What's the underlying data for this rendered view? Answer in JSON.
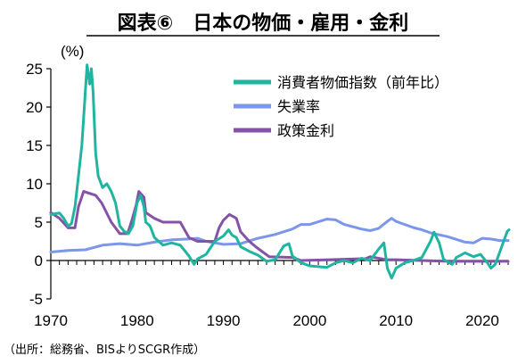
{
  "chart_data": {
    "type": "line",
    "title": "図表⑥　日本の物価・雇用・金利",
    "unit_label": "(%)",
    "source": "（出所：総務省、BISよりSCGR作成）",
    "xlim": [
      1970,
      2023
    ],
    "ylim": [
      -5,
      25
    ],
    "x_ticks": [
      "1970",
      "1980",
      "1990",
      "2000",
      "2010",
      "2020"
    ],
    "y_ticks": [
      "25",
      "20",
      "15",
      "10",
      "5",
      "0",
      "-5"
    ],
    "legend_position": "top-right",
    "series": [
      {
        "name": "消費者物価指数（前年比）",
        "color": "#1fb5a0",
        "points": [
          [
            1970,
            6.0
          ],
          [
            1971,
            6.2
          ],
          [
            1971.5,
            5.5
          ],
          [
            1972,
            4.5
          ],
          [
            1972.4,
            4.8
          ],
          [
            1972.8,
            7.0
          ],
          [
            1973.2,
            11.0
          ],
          [
            1973.6,
            15.0
          ],
          [
            1974.0,
            22.0
          ],
          [
            1974.2,
            25.5
          ],
          [
            1974.5,
            23.0
          ],
          [
            1974.7,
            25.0
          ],
          [
            1974.9,
            22.0
          ],
          [
            1975.2,
            14.0
          ],
          [
            1975.5,
            11.0
          ],
          [
            1976.0,
            9.5
          ],
          [
            1976.5,
            10.0
          ],
          [
            1977,
            9.0
          ],
          [
            1977.5,
            7.5
          ],
          [
            1978,
            4.5
          ],
          [
            1978.5,
            3.8
          ],
          [
            1979,
            3.5
          ],
          [
            1979.5,
            4.5
          ],
          [
            1980,
            7.5
          ],
          [
            1980.4,
            8.5
          ],
          [
            1980.8,
            7.0
          ],
          [
            1981,
            5.0
          ],
          [
            1981.5,
            4.5
          ],
          [
            1982,
            3.0
          ],
          [
            1983,
            2.0
          ],
          [
            1984,
            2.3
          ],
          [
            1985,
            2.0
          ],
          [
            1986,
            0.6
          ],
          [
            1986.6,
            -0.5
          ],
          [
            1987,
            0.2
          ],
          [
            1987.5,
            0.5
          ],
          [
            1988,
            0.8
          ],
          [
            1989,
            2.5
          ],
          [
            1990,
            3.2
          ],
          [
            1990.6,
            4.0
          ],
          [
            1991,
            3.3
          ],
          [
            1991.5,
            3.0
          ],
          [
            1992,
            1.8
          ],
          [
            1993,
            1.2
          ],
          [
            1994,
            0.7
          ],
          [
            1995,
            -0.1
          ],
          [
            1996,
            0.1
          ],
          [
            1997,
            1.9
          ],
          [
            1997.6,
            2.2
          ],
          [
            1998,
            0.6
          ],
          [
            1999,
            -0.3
          ],
          [
            2000,
            -0.7
          ],
          [
            2001,
            -0.8
          ],
          [
            2002,
            -0.9
          ],
          [
            2003,
            -0.3
          ],
          [
            2004,
            0.0
          ],
          [
            2005,
            -0.3
          ],
          [
            2006,
            0.3
          ],
          [
            2007,
            0.0
          ],
          [
            2008,
            1.5
          ],
          [
            2008.6,
            2.3
          ],
          [
            2009,
            -1.0
          ],
          [
            2009.5,
            -2.3
          ],
          [
            2010,
            -1.0
          ],
          [
            2011,
            -0.3
          ],
          [
            2012,
            0.0
          ],
          [
            2013,
            0.4
          ],
          [
            2014,
            2.5
          ],
          [
            2014.4,
            3.7
          ],
          [
            2015,
            2.3
          ],
          [
            2015.5,
            0.2
          ],
          [
            2016,
            -0.2
          ],
          [
            2016.5,
            -0.5
          ],
          [
            2017,
            0.4
          ],
          [
            2018,
            1.0
          ],
          [
            2019,
            0.5
          ],
          [
            2019.8,
            0.8
          ],
          [
            2020,
            0.5
          ],
          [
            2020.6,
            -0.3
          ],
          [
            2021,
            -1.0
          ],
          [
            2021.5,
            -0.5
          ],
          [
            2022,
            1.0
          ],
          [
            2022.5,
            2.6
          ],
          [
            2022.9,
            3.8
          ],
          [
            2023.1,
            4.0
          ]
        ]
      },
      {
        "name": "失業率",
        "color": "#7b96ea",
        "points": [
          [
            1970,
            1.1
          ],
          [
            1972,
            1.3
          ],
          [
            1974,
            1.4
          ],
          [
            1976,
            2.0
          ],
          [
            1978,
            2.2
          ],
          [
            1980,
            2.0
          ],
          [
            1982,
            2.4
          ],
          [
            1984,
            2.7
          ],
          [
            1986,
            2.8
          ],
          [
            1987,
            2.9
          ],
          [
            1988,
            2.5
          ],
          [
            1990,
            2.1
          ],
          [
            1992,
            2.2
          ],
          [
            1994,
            2.9
          ],
          [
            1996,
            3.4
          ],
          [
            1998,
            4.1
          ],
          [
            1999,
            4.7
          ],
          [
            2000,
            4.7
          ],
          [
            2002,
            5.4
          ],
          [
            2003,
            5.3
          ],
          [
            2004,
            4.7
          ],
          [
            2006,
            4.1
          ],
          [
            2007,
            3.9
          ],
          [
            2008,
            4.2
          ],
          [
            2009,
            5.1
          ],
          [
            2009.5,
            5.5
          ],
          [
            2010,
            5.1
          ],
          [
            2012,
            4.3
          ],
          [
            2013,
            4.0
          ],
          [
            2014,
            3.6
          ],
          [
            2016,
            3.1
          ],
          [
            2018,
            2.4
          ],
          [
            2019,
            2.3
          ],
          [
            2020,
            2.9
          ],
          [
            2021,
            2.8
          ],
          [
            2022,
            2.6
          ],
          [
            2023,
            2.6
          ]
        ]
      },
      {
        "name": "政策金利",
        "color": "#8452a6",
        "points": [
          [
            1970,
            6.25
          ],
          [
            1971,
            5.5
          ],
          [
            1972,
            4.25
          ],
          [
            1972.8,
            4.25
          ],
          [
            1973.2,
            7.0
          ],
          [
            1973.8,
            9.0
          ],
          [
            1975.2,
            8.5
          ],
          [
            1975.9,
            7.5
          ],
          [
            1977,
            5.0
          ],
          [
            1978,
            3.5
          ],
          [
            1978.9,
            3.5
          ],
          [
            1979.4,
            5.25
          ],
          [
            1979.9,
            7.25
          ],
          [
            1980.2,
            9.0
          ],
          [
            1980.8,
            8.25
          ],
          [
            1981,
            6.25
          ],
          [
            1982,
            5.5
          ],
          [
            1983,
            5.0
          ],
          [
            1985,
            5.0
          ],
          [
            1986,
            3.0
          ],
          [
            1987,
            2.5
          ],
          [
            1989,
            2.5
          ],
          [
            1989.5,
            4.25
          ],
          [
            1990,
            5.25
          ],
          [
            1990.7,
            6.0
          ],
          [
            1991.5,
            5.5
          ],
          [
            1992,
            3.75
          ],
          [
            1993,
            2.5
          ],
          [
            1993.8,
            1.75
          ],
          [
            1995.3,
            0.5
          ],
          [
            1998,
            0.4
          ],
          [
            1999,
            0.0
          ],
          [
            2006.5,
            0.25
          ],
          [
            2007,
            0.5
          ],
          [
            2008.9,
            0.1
          ],
          [
            2010,
            0.1
          ],
          [
            2016,
            -0.1
          ],
          [
            2023,
            -0.1
          ]
        ]
      }
    ]
  }
}
